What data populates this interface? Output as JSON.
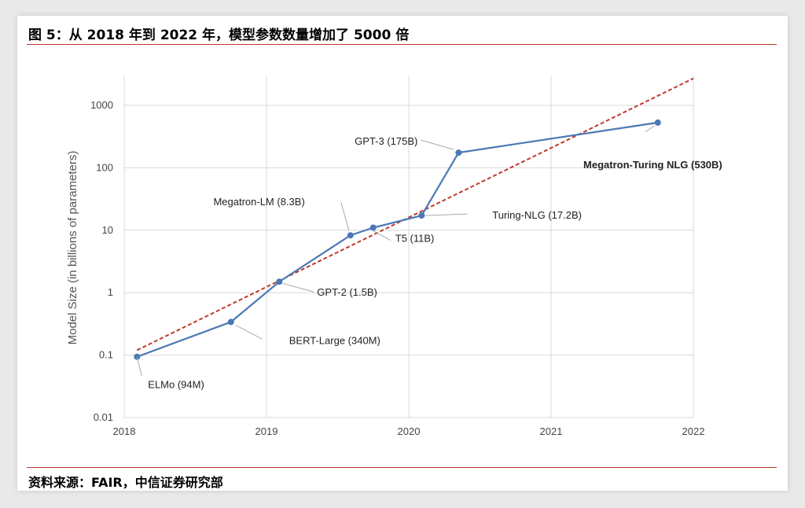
{
  "figure_title": "图 5：从 2018 年到 2022 年，模型参数数量增加了 5000 倍",
  "source": "资料来源：FAIR，中信证券研究部",
  "chart_data": {
    "type": "line",
    "title": "",
    "xlabel": "",
    "ylabel": "Model Size (in billions of parameters)",
    "y_scale": "log",
    "xlim": [
      2018,
      2022
    ],
    "ylim": [
      0.01,
      3000
    ],
    "x_ticks": [
      "2018",
      "2019",
      "2020",
      "2021",
      "2022"
    ],
    "y_ticks": [
      "0.01",
      "0.1",
      "1",
      "10",
      "100",
      "1000"
    ],
    "grid": true,
    "colors": {
      "series": "#4a78b5",
      "trend": "#c0392b"
    },
    "series": [
      {
        "points": [
          {
            "x": 2018.09,
            "y": 0.094,
            "label": "ELMo (94M)",
            "bold": false
          },
          {
            "x": 2018.75,
            "y": 0.34,
            "label": "BERT-Large (340M)",
            "bold": false
          },
          {
            "x": 2019.09,
            "y": 1.5,
            "label": "GPT-2 (1.5B)",
            "bold": false
          },
          {
            "x": 2019.59,
            "y": 8.3,
            "label": "Megatron-LM (8.3B)",
            "bold": false
          },
          {
            "x": 2019.75,
            "y": 11,
            "label": "T5 (11B)",
            "bold": false
          },
          {
            "x": 2020.09,
            "y": 17.2,
            "label": "Turing-NLG (17.2B)",
            "bold": false
          },
          {
            "x": 2020.35,
            "y": 175,
            "label": "GPT-3 (175B)",
            "bold": false
          },
          {
            "x": 2021.75,
            "y": 530,
            "label": "Megatron-Turing NLG (530B)",
            "bold": true
          }
        ]
      }
    ],
    "trendline": {
      "style": "dashed",
      "x": [
        2018.09,
        2022
      ],
      "y": [
        0.12,
        2700
      ]
    }
  }
}
